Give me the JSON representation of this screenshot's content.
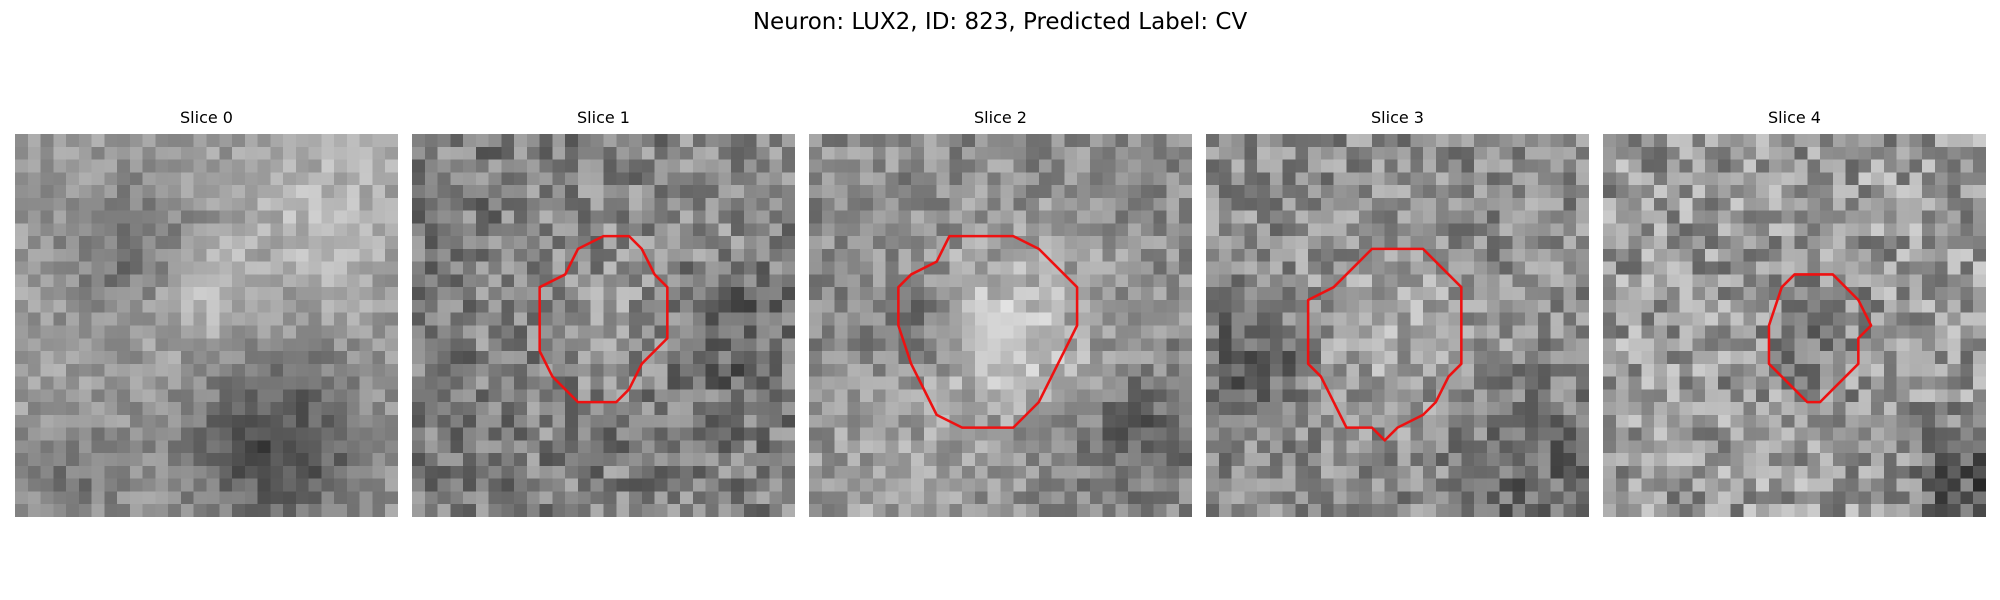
{
  "figure": {
    "title": "Neuron: LUX2, ID: 823, Predicted Label: CV",
    "contour_color": "#ee1111"
  },
  "slices": [
    {
      "title": "Slice 0",
      "has_contour": false,
      "contour_points": []
    },
    {
      "title": "Slice 1",
      "has_contour": true,
      "contour_points": [
        [
          12,
          11
        ],
        [
          13,
          9
        ],
        [
          15,
          8
        ],
        [
          17,
          8
        ],
        [
          18,
          9
        ],
        [
          19,
          11
        ],
        [
          20,
          12
        ],
        [
          20,
          16
        ],
        [
          18,
          18
        ],
        [
          17,
          20
        ],
        [
          16,
          21
        ],
        [
          13,
          21
        ],
        [
          12,
          20
        ],
        [
          11,
          19
        ],
        [
          10,
          17
        ],
        [
          10,
          12
        ]
      ]
    },
    {
      "title": "Slice 2",
      "has_contour": true,
      "contour_points": [
        [
          10,
          10
        ],
        [
          11,
          8
        ],
        [
          13,
          8
        ],
        [
          16,
          8
        ],
        [
          18,
          9
        ],
        [
          20,
          11
        ],
        [
          21,
          12
        ],
        [
          21,
          15
        ],
        [
          20,
          17
        ],
        [
          19,
          19
        ],
        [
          18,
          21
        ],
        [
          16,
          23
        ],
        [
          14,
          23
        ],
        [
          12,
          23
        ],
        [
          10,
          22
        ],
        [
          9,
          20
        ],
        [
          8,
          18
        ],
        [
          7,
          15
        ],
        [
          7,
          12
        ],
        [
          8,
          11
        ]
      ]
    },
    {
      "title": "Slice 3",
      "has_contour": true,
      "contour_points": [
        [
          10,
          12
        ],
        [
          12,
          10
        ],
        [
          13,
          9
        ],
        [
          15,
          9
        ],
        [
          17,
          9
        ],
        [
          18,
          10
        ],
        [
          19,
          11
        ],
        [
          20,
          12
        ],
        [
          20,
          18
        ],
        [
          19,
          19
        ],
        [
          18,
          21
        ],
        [
          17,
          22
        ],
        [
          15,
          23
        ],
        [
          14,
          24
        ],
        [
          13,
          23
        ],
        [
          11,
          23
        ],
        [
          10,
          21
        ],
        [
          9,
          19
        ],
        [
          8,
          18
        ],
        [
          8,
          13
        ]
      ]
    },
    {
      "title": "Slice 4",
      "has_contour": true,
      "contour_points": [
        [
          14,
          12
        ],
        [
          15,
          11
        ],
        [
          18,
          11
        ],
        [
          19,
          12
        ],
        [
          20,
          13
        ],
        [
          21,
          15
        ],
        [
          20,
          16
        ],
        [
          20,
          18
        ],
        [
          19,
          19
        ],
        [
          18,
          20
        ],
        [
          17,
          21
        ],
        [
          16,
          21
        ],
        [
          15,
          20
        ],
        [
          14,
          19
        ],
        [
          13,
          18
        ],
        [
          13,
          15
        ]
      ]
    }
  ]
}
